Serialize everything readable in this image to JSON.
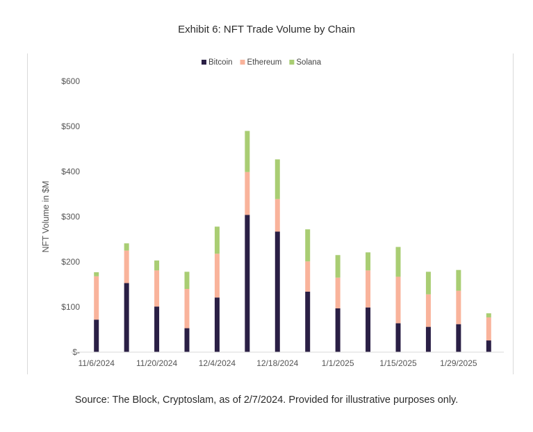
{
  "title": "Exhibit 6: NFT Trade Volume by Chain",
  "source": "Source: The Block, Cryptoslam, as of 2/7/2024. Provided for illustrative purposes only.",
  "chart_data": {
    "type": "bar",
    "stacked": true,
    "title": "Exhibit 6: NFT Trade Volume by Chain",
    "ylabel": "NFT Volume in $M",
    "xlabel": "",
    "ylim": [
      0,
      600
    ],
    "yticks": [
      0,
      100,
      200,
      300,
      400,
      500,
      600
    ],
    "ytick_labels": [
      "$-",
      "$100",
      "$200",
      "$300",
      "$400",
      "$500",
      "$600"
    ],
    "grid": false,
    "legend": "top",
    "categories": [
      "11/6/2024",
      "11/13/2024",
      "11/20/2024",
      "11/27/2024",
      "12/4/2024",
      "12/11/2024",
      "12/18/2024",
      "12/25/2024",
      "1/1/2025",
      "1/8/2025",
      "1/15/2025",
      "1/22/2025",
      "1/29/2025",
      "2/5/2025"
    ],
    "xtick_labels": [
      "11/6/2024",
      "",
      "11/20/2024",
      "",
      "12/4/2024",
      "",
      "12/18/2024",
      "",
      "1/1/2025",
      "",
      "1/15/2025",
      "",
      "1/29/2025",
      ""
    ],
    "series": [
      {
        "name": "Bitcoin",
        "color": "#2a1f45",
        "values": [
          72,
          153,
          101,
          53,
          121,
          304,
          267,
          134,
          97,
          99,
          64,
          56,
          62,
          26
        ]
      },
      {
        "name": "Ethereum",
        "color": "#f9b39b",
        "values": [
          96,
          72,
          80,
          87,
          97,
          95,
          72,
          67,
          68,
          82,
          103,
          72,
          74,
          51
        ]
      },
      {
        "name": "Solana",
        "color": "#a9cd73",
        "values": [
          9,
          16,
          22,
          38,
          60,
          91,
          88,
          71,
          50,
          40,
          66,
          50,
          46,
          9
        ]
      }
    ]
  }
}
